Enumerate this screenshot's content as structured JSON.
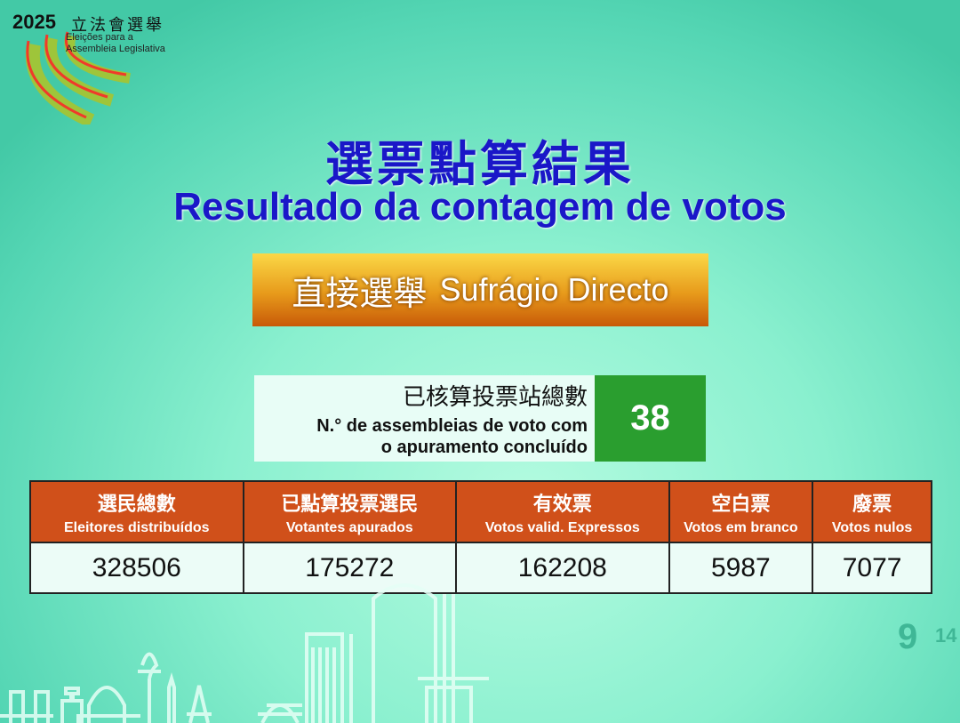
{
  "logo": {
    "year": "2025",
    "title_cn": "立法會選舉",
    "title_pt_1": "Eleições para a",
    "title_pt_2": "Assembleia Legislativa"
  },
  "header": {
    "title_cn": "選票點算結果",
    "title_pt": "Resultado da contagem de votos"
  },
  "banner": {
    "cn": "直接選舉",
    "pt": "Sufrágio Directo"
  },
  "stations": {
    "label_cn": "已核算投票站總數",
    "label_pt_1": "N.° de assembleias de voto com",
    "label_pt_2": "o apuramento concluído",
    "value": "38"
  },
  "table": {
    "columns": [
      {
        "cn": "選民總數",
        "pt": "Eleitores distribuídos",
        "value": "328506"
      },
      {
        "cn": "已點算投票選民",
        "pt": "Votantes apurados",
        "value": "175272"
      },
      {
        "cn": "有效票",
        "pt": "Votos valid. Expressos",
        "value": "162208"
      },
      {
        "cn": "空白票",
        "pt": "Votos em branco",
        "value": "5987"
      },
      {
        "cn": "廢票",
        "pt": "Votos nulos",
        "value": "7077"
      }
    ]
  },
  "date_badge": {
    "month": "9",
    "day": "14"
  },
  "colors": {
    "title": "#1a17c8",
    "header_bg": "#d0501a",
    "station_value_bg": "#2a9e2f",
    "banner": "#e79a1b"
  }
}
